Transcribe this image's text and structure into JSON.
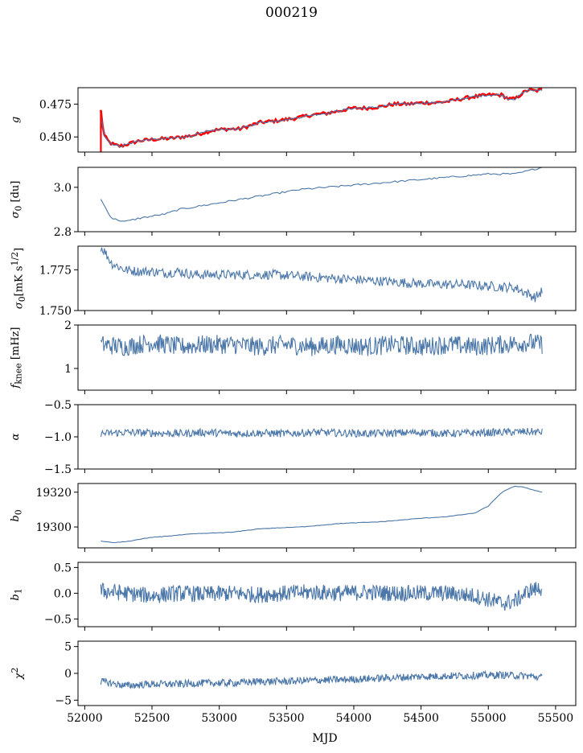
{
  "figure": {
    "title": "000219",
    "xlabel": "MJD"
  },
  "chart_data": [
    {
      "type": "line",
      "ylabel": "g",
      "ylabel_html": "<i>g</i>",
      "xlim": [
        51950,
        55650
      ],
      "ylim": [
        0.4385,
        0.4875
      ],
      "yticks": [
        0.45,
        0.475
      ],
      "ytick_labels": [
        "0.450",
        "0.475"
      ],
      "series": [
        {
          "color": "#ff0000",
          "x": [
            52120,
            52140,
            52180,
            52220,
            52260,
            52300,
            52400,
            52500,
            52650,
            52800,
            52950,
            53050,
            53150,
            53300,
            53400,
            53550,
            53700,
            53800,
            53900,
            54000,
            54100,
            54200,
            54300,
            54400,
            54500,
            54600,
            54700,
            54850,
            55000,
            55100,
            55150,
            55200,
            55250,
            55300,
            55350,
            55400
          ],
          "y": [
            0.47,
            0.452,
            0.446,
            0.444,
            0.443,
            0.444,
            0.447,
            0.448,
            0.449,
            0.451,
            0.455,
            0.456,
            0.456,
            0.461,
            0.462,
            0.464,
            0.467,
            0.468,
            0.47,
            0.472,
            0.472,
            0.473,
            0.475,
            0.475,
            0.476,
            0.476,
            0.477,
            0.48,
            0.482,
            0.482,
            0.479,
            0.479,
            0.483,
            0.486,
            0.485,
            0.486
          ]
        },
        {
          "color": "#4a76a8",
          "x": [
            52120,
            52140,
            52180,
            52220,
            52260,
            52300,
            52400,
            52500,
            52650,
            52800,
            52950,
            53050,
            53150,
            53300,
            53400,
            53550,
            53700,
            53800,
            53900,
            54000,
            54100,
            54200,
            54300,
            54400,
            54500,
            54600,
            54700,
            54850,
            55000,
            55100,
            55150,
            55200,
            55250,
            55300,
            55350,
            55400
          ],
          "y": [
            0.47,
            0.452,
            0.446,
            0.444,
            0.443,
            0.444,
            0.447,
            0.448,
            0.449,
            0.451,
            0.455,
            0.456,
            0.456,
            0.461,
            0.462,
            0.464,
            0.467,
            0.468,
            0.47,
            0.472,
            0.472,
            0.473,
            0.475,
            0.475,
            0.476,
            0.476,
            0.477,
            0.48,
            0.482,
            0.482,
            0.479,
            0.479,
            0.483,
            0.486,
            0.485,
            0.486
          ]
        }
      ]
    },
    {
      "type": "line",
      "ylabel": "σ0 [du]",
      "ylabel_html": "<i>σ</i><sub>0</sub> [du]",
      "xlim": [
        51950,
        55650
      ],
      "ylim": [
        2.8,
        3.09
      ],
      "yticks": [
        2.8,
        3.0
      ],
      "ytick_labels": [
        "2.8",
        "3.0"
      ],
      "series": [
        {
          "color": "#4a76a8",
          "x": [
            52120,
            52200,
            52300,
            52400,
            52500,
            52600,
            52700,
            52800,
            53000,
            53200,
            53400,
            53600,
            53800,
            54000,
            54200,
            54400,
            54600,
            54800,
            55000,
            55200,
            55300,
            55400
          ],
          "y": [
            2.945,
            2.86,
            2.845,
            2.86,
            2.87,
            2.88,
            2.9,
            2.91,
            2.93,
            2.95,
            2.97,
            2.99,
            3.0,
            3.01,
            3.02,
            3.03,
            3.04,
            3.05,
            3.06,
            3.06,
            3.075,
            3.09
          ]
        }
      ]
    },
    {
      "type": "line",
      "ylabel": "σ0[mK s^1/2]",
      "ylabel_html": "<i>σ</i><sub>0</sub>[mK s<sup>1/2</sup>]",
      "xlim": [
        51950,
        55650
      ],
      "ylim": [
        1.75,
        1.7895
      ],
      "yticks": [
        1.75,
        1.775
      ],
      "ytick_labels": [
        "1.750",
        "1.775"
      ],
      "series": [
        {
          "color": "#4a76a8",
          "x": [
            52120,
            52150,
            52200,
            52300,
            52400,
            52500,
            52600,
            52700,
            52800,
            53000,
            53200,
            53400,
            53600,
            53800,
            54000,
            54200,
            54400,
            54600,
            54800,
            55000,
            55200,
            55350,
            55400
          ],
          "y": [
            1.789,
            1.786,
            1.779,
            1.775,
            1.774,
            1.774,
            1.773,
            1.774,
            1.772,
            1.772,
            1.772,
            1.772,
            1.771,
            1.77,
            1.769,
            1.768,
            1.767,
            1.766,
            1.766,
            1.765,
            1.764,
            1.758,
            1.762
          ]
        }
      ]
    },
    {
      "type": "line",
      "ylabel": "fknee [mHz]",
      "ylabel_html": "<i>f</i><sub>knee</sub> [mHz]",
      "xlim": [
        51950,
        55650
      ],
      "ylim": [
        0.5,
        2.0
      ],
      "yticks": [
        1,
        2
      ],
      "ytick_labels": [
        "1",
        "2"
      ],
      "series": [
        {
          "color": "#4a76a8",
          "x": [
            52120,
            52300,
            52500,
            52700,
            52900,
            53100,
            53300,
            53500,
            53700,
            53900,
            54100,
            54300,
            54500,
            54700,
            54900,
            55100,
            55300,
            55400
          ],
          "y": [
            1.55,
            1.5,
            1.6,
            1.5,
            1.55,
            1.55,
            1.5,
            1.55,
            1.5,
            1.55,
            1.5,
            1.55,
            1.5,
            1.55,
            1.5,
            1.55,
            1.6,
            1.55
          ]
        }
      ]
    },
    {
      "type": "line",
      "ylabel": "α",
      "ylabel_html": "<i>α</i>",
      "xlim": [
        51950,
        55650
      ],
      "ylim": [
        -1.5,
        -0.5
      ],
      "yticks": [
        -1.5,
        -1.0,
        -0.5
      ],
      "ytick_labels": [
        "−1.5",
        "−1.0",
        "−0.5"
      ],
      "series": [
        {
          "color": "#4a76a8",
          "x": [
            52120,
            52300,
            52500,
            52700,
            52900,
            53100,
            53300,
            53500,
            53700,
            53900,
            54100,
            54300,
            54500,
            54700,
            54900,
            55100,
            55300,
            55400
          ],
          "y": [
            -0.95,
            -0.93,
            -0.94,
            -0.95,
            -0.93,
            -0.95,
            -0.94,
            -0.95,
            -0.93,
            -0.94,
            -0.95,
            -0.94,
            -0.93,
            -0.95,
            -0.94,
            -0.93,
            -0.92,
            -0.93
          ]
        }
      ]
    },
    {
      "type": "line",
      "ylabel": "b0",
      "ylabel_html": "<i>b</i><sub>0</sub>",
      "xlim": [
        51950,
        55650
      ],
      "ylim": [
        19288,
        19325
      ],
      "yticks": [
        19300,
        19320
      ],
      "ytick_labels": [
        "19300",
        "19320"
      ],
      "series": [
        {
          "color": "#4a76a8",
          "x": [
            52120,
            52200,
            52300,
            52500,
            52800,
            53100,
            53300,
            53600,
            53900,
            54200,
            54500,
            54700,
            54900,
            55000,
            55100,
            55200,
            55250,
            55300,
            55400
          ],
          "y": [
            19292,
            19291,
            19291.5,
            19294,
            19296,
            19297,
            19299,
            19300,
            19302,
            19303,
            19305,
            19306,
            19308,
            19312,
            19320,
            19323.5,
            19323,
            19322,
            19320
          ]
        }
      ]
    },
    {
      "type": "line",
      "ylabel": "b1",
      "ylabel_html": "<i>b</i><sub>1</sub>",
      "xlim": [
        51950,
        55650
      ],
      "ylim": [
        -0.65,
        0.6
      ],
      "yticks": [
        -0.5,
        0.0,
        0.5
      ],
      "ytick_labels": [
        "−0.5",
        "0.0",
        "0.5"
      ],
      "series": [
        {
          "color": "#4a76a8",
          "x": [
            52120,
            52300,
            52500,
            52700,
            52900,
            53100,
            53300,
            53500,
            53700,
            53900,
            54100,
            54300,
            54500,
            54700,
            54900,
            55000,
            55100,
            55200,
            55300,
            55400
          ],
          "y": [
            0.05,
            0.0,
            -0.05,
            0.0,
            -0.02,
            0.0,
            -0.03,
            0.0,
            0.02,
            0.0,
            0.02,
            0.0,
            0.0,
            0.0,
            -0.05,
            -0.12,
            -0.2,
            -0.15,
            0.05,
            0.1
          ]
        }
      ]
    },
    {
      "type": "line",
      "ylabel": "χ2",
      "ylabel_html": "<i>χ</i><sup>2</sup>",
      "xlim": [
        51950,
        55650
      ],
      "ylim": [
        -6,
        6
      ],
      "yticks": [
        -5,
        0,
        5
      ],
      "ytick_labels": [
        "−5",
        "0",
        "5"
      ],
      "series": [
        {
          "color": "#4a76a8",
          "x": [
            52120,
            52300,
            52500,
            52700,
            52900,
            53100,
            53300,
            53500,
            53700,
            53900,
            54100,
            54300,
            54500,
            54700,
            54900,
            55100,
            55300,
            55400
          ],
          "y": [
            -1.5,
            -2.3,
            -2.0,
            -2.0,
            -1.8,
            -1.8,
            -1.5,
            -1.5,
            -1.3,
            -1.2,
            -1.0,
            -0.8,
            -0.6,
            -0.5,
            -0.4,
            -0.3,
            -0.5,
            -0.8
          ]
        }
      ]
    }
  ],
  "xaxis": {
    "ticks": [
      52000,
      52500,
      53000,
      53500,
      54000,
      54500,
      55000,
      55500
    ],
    "tick_labels": [
      "52000",
      "52500",
      "53000",
      "53500",
      "54000",
      "54500",
      "55000",
      "55500"
    ]
  }
}
